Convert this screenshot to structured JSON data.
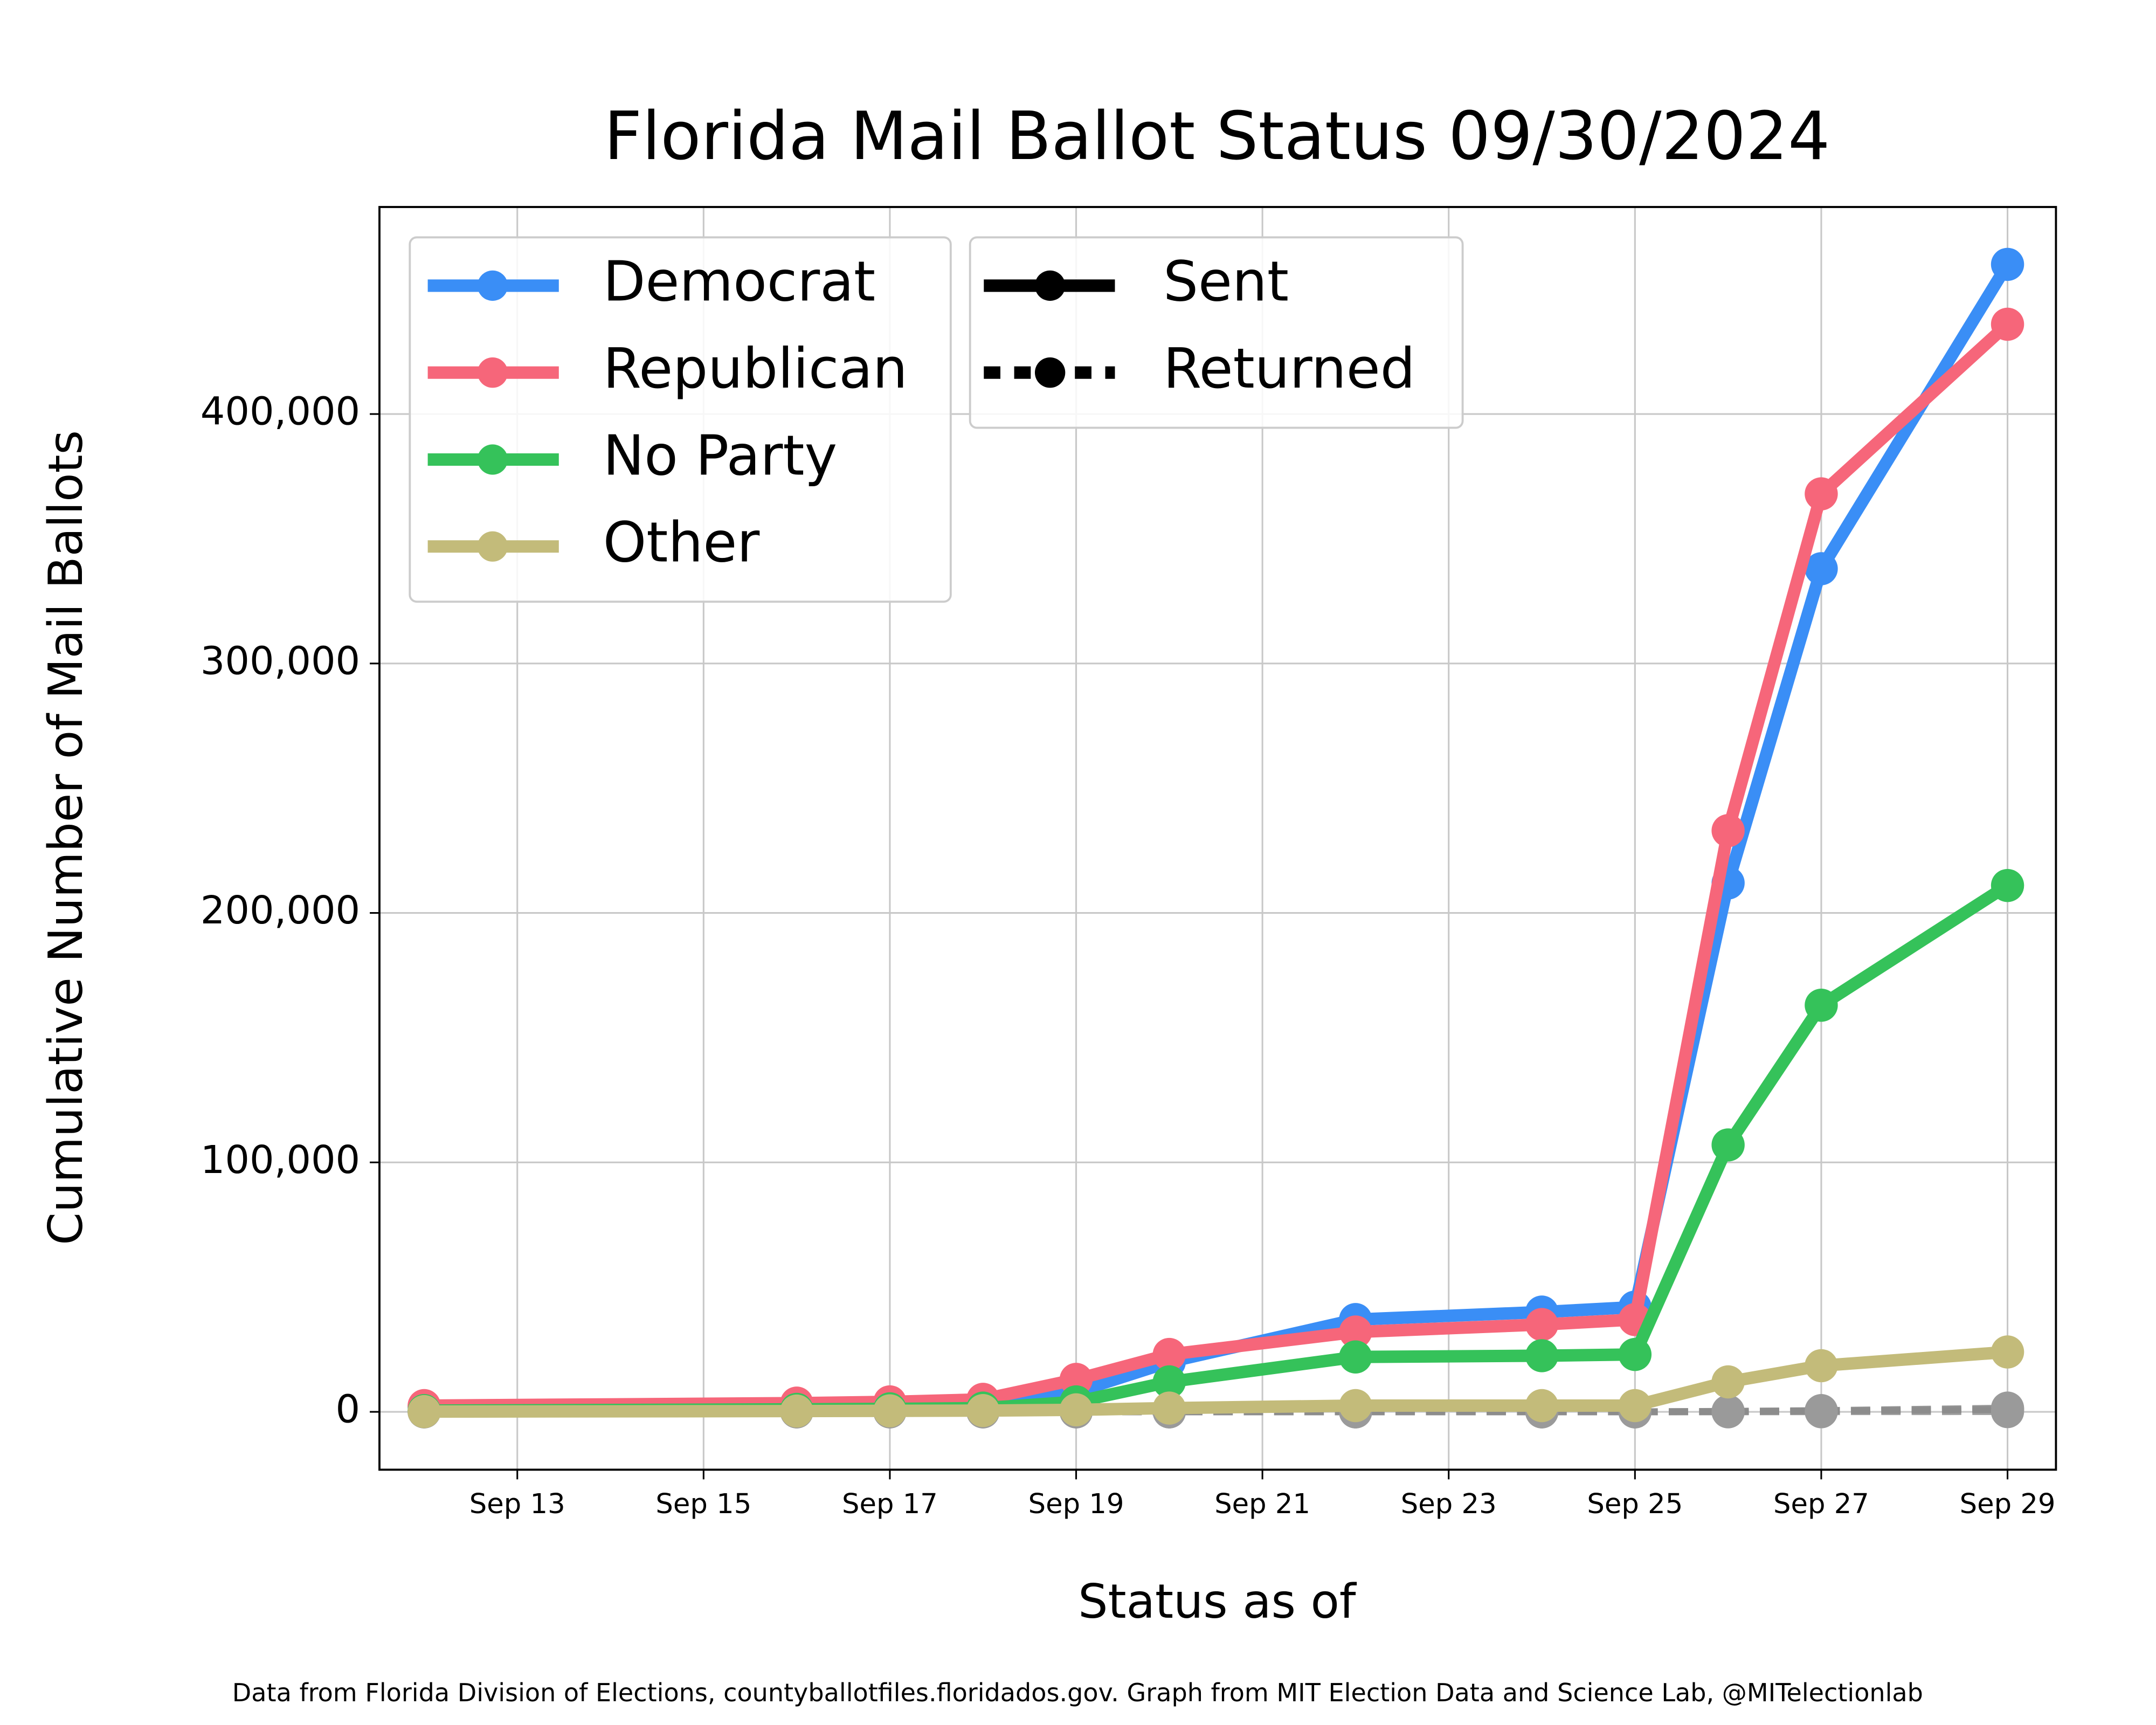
{
  "chart_data": {
    "type": "line",
    "title": "Florida Mail Ballot Status 09/30/2024",
    "xlabel": "Status as of",
    "ylabel": "Cumulative Number of Mail Ballots",
    "note": "Data from Florida Division of Elections, countyballotfiles.floridados.gov. Graph from MIT Election Data and Science Lab, @MITelectionlab",
    "x": [
      12,
      16,
      17,
      18,
      19,
      20,
      22,
      24,
      25,
      26,
      27,
      29
    ],
    "xlim": [
      11.52,
      29.52
    ],
    "xticks": [
      {
        "value": 13,
        "label": "Sep 13"
      },
      {
        "value": 15,
        "label": "Sep 15"
      },
      {
        "value": 17,
        "label": "Sep 17"
      },
      {
        "value": 19,
        "label": "Sep 19"
      },
      {
        "value": 21,
        "label": "Sep 21"
      },
      {
        "value": 23,
        "label": "Sep 23"
      },
      {
        "value": 25,
        "label": "Sep 25"
      },
      {
        "value": 27,
        "label": "Sep 27"
      },
      {
        "value": 29,
        "label": "Sep 29"
      }
    ],
    "ylim": [
      -23200,
      483000
    ],
    "yticks": [
      0,
      {
        "value": 100000,
        "label": "100,000"
      },
      {
        "value": 200000,
        "label": "200,000"
      },
      {
        "value": 300000,
        "label": "300,000"
      },
      {
        "value": 400000,
        "label": "400,000"
      }
    ],
    "grid": true,
    "legend": "upper left",
    "series": [
      {
        "name": "Democrat",
        "color": "#3a8ef6",
        "sent": [
          2000,
          3000,
          3500,
          4000,
          8000,
          20000,
          37000,
          40000,
          42000,
          212000,
          338000,
          460000
        ],
        "returned": [
          0,
          0,
          0,
          0,
          0,
          0,
          0,
          0,
          0,
          200,
          500,
          1500
        ]
      },
      {
        "name": "Republican",
        "color": "#f6667a",
        "sent": [
          2500,
          3500,
          4000,
          5000,
          13000,
          23000,
          32000,
          35000,
          37000,
          233000,
          368000,
          436000
        ],
        "returned": [
          0,
          0,
          0,
          0,
          0,
          0,
          0,
          0,
          0,
          150,
          400,
          1200
        ]
      },
      {
        "name": "No Party",
        "color": "#35c25a",
        "sent": [
          500,
          1000,
          1200,
          1500,
          4000,
          12000,
          22000,
          22500,
          23000,
          107000,
          163000,
          211000
        ],
        "returned": [
          0,
          0,
          0,
          0,
          0,
          0,
          0,
          0,
          0,
          100,
          300,
          800
        ]
      },
      {
        "name": "Other",
        "color": "#c3bb7a",
        "sent": [
          100,
          300,
          400,
          500,
          800,
          1500,
          2500,
          2500,
          2500,
          12000,
          18500,
          24000
        ],
        "returned": [
          0,
          0,
          0,
          0,
          0,
          0,
          0,
          0,
          0,
          0,
          50,
          100
        ]
      }
    ],
    "status_legend": [
      {
        "name": "Sent",
        "style": "solid"
      },
      {
        "name": "Returned",
        "style": "dashed"
      }
    ]
  }
}
